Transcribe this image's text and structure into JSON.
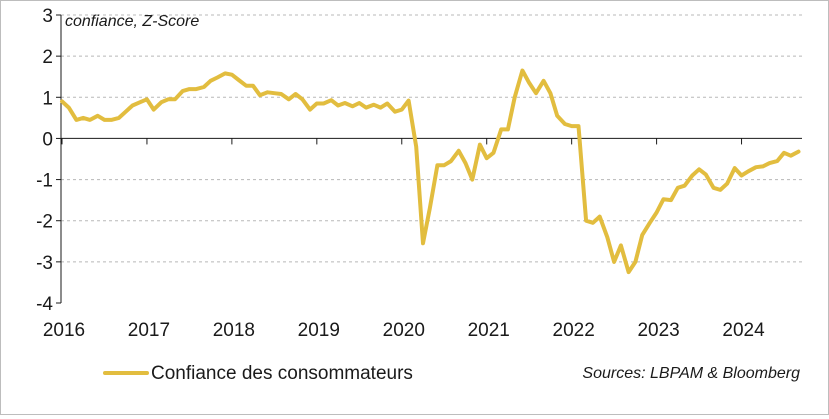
{
  "chart_data": {
    "type": "line",
    "unit_label": "confiance, Z-Score",
    "source": "Sources: LBPAM & Bloomberg",
    "ylim": [
      -4,
      3
    ],
    "y_ticks": [
      3,
      2,
      1,
      0,
      -1,
      -2,
      -3,
      -4
    ],
    "xlim": [
      2016,
      2024.7
    ],
    "x_ticks": [
      2016,
      2017,
      2018,
      2019,
      2020,
      2021,
      2022,
      2023,
      2024
    ],
    "grid": "horizontal dashed",
    "legend": "bottom-left",
    "line_color": "#e2bd3f",
    "series": [
      {
        "name": "Confiance des consommateurs",
        "x": [
          2016.0,
          2016.08,
          2016.17,
          2016.25,
          2016.33,
          2016.42,
          2016.5,
          2016.58,
          2016.67,
          2016.75,
          2016.83,
          2016.92,
          2017.0,
          2017.08,
          2017.17,
          2017.25,
          2017.33,
          2017.42,
          2017.5,
          2017.58,
          2017.67,
          2017.75,
          2017.83,
          2017.92,
          2018.0,
          2018.08,
          2018.17,
          2018.25,
          2018.33,
          2018.42,
          2018.5,
          2018.58,
          2018.67,
          2018.75,
          2018.83,
          2018.92,
          2019.0,
          2019.08,
          2019.17,
          2019.25,
          2019.33,
          2019.42,
          2019.5,
          2019.58,
          2019.67,
          2019.75,
          2019.83,
          2019.92,
          2020.0,
          2020.08,
          2020.17,
          2020.25,
          2020.33,
          2020.42,
          2020.5,
          2020.58,
          2020.67,
          2020.75,
          2020.83,
          2020.92,
          2021.0,
          2021.08,
          2021.17,
          2021.25,
          2021.33,
          2021.42,
          2021.5,
          2021.58,
          2021.67,
          2021.75,
          2021.83,
          2021.92,
          2022.0,
          2022.08,
          2022.17,
          2022.25,
          2022.33,
          2022.42,
          2022.5,
          2022.58,
          2022.67,
          2022.75,
          2022.83,
          2022.92,
          2023.0,
          2023.08,
          2023.17,
          2023.25,
          2023.33,
          2023.42,
          2023.5,
          2023.58,
          2023.67,
          2023.75,
          2023.83,
          2023.92,
          2024.0,
          2024.08,
          2024.17,
          2024.25,
          2024.33,
          2024.42,
          2024.5,
          2024.58,
          2024.67
        ],
        "y": [
          0.9,
          0.75,
          0.45,
          0.5,
          0.45,
          0.55,
          0.45,
          0.45,
          0.5,
          0.65,
          0.8,
          0.88,
          0.95,
          0.7,
          0.88,
          0.95,
          0.95,
          1.15,
          1.2,
          1.2,
          1.25,
          1.4,
          1.48,
          1.58,
          1.55,
          1.42,
          1.28,
          1.28,
          1.05,
          1.12,
          1.1,
          1.08,
          0.95,
          1.08,
          0.95,
          0.7,
          0.85,
          0.85,
          0.93,
          0.8,
          0.86,
          0.78,
          0.86,
          0.75,
          0.82,
          0.75,
          0.85,
          0.65,
          0.7,
          0.92,
          -0.2,
          -2.55,
          -1.7,
          -0.65,
          -0.65,
          -0.55,
          -0.3,
          -0.6,
          -1.0,
          -0.15,
          -0.48,
          -0.35,
          0.22,
          0.22,
          1.0,
          1.65,
          1.35,
          1.1,
          1.4,
          1.1,
          0.55,
          0.35,
          0.3,
          0.3,
          -2.0,
          -2.05,
          -1.9,
          -2.4,
          -3.0,
          -2.6,
          -3.25,
          -3.0,
          -2.35,
          -2.05,
          -1.8,
          -1.48,
          -1.5,
          -1.2,
          -1.15,
          -0.9,
          -0.75,
          -0.88,
          -1.2,
          -1.25,
          -1.1,
          -0.72,
          -0.9,
          -0.8,
          -0.7,
          -0.68,
          -0.6,
          -0.55,
          -0.35,
          -0.42,
          -0.32
        ]
      }
    ]
  }
}
